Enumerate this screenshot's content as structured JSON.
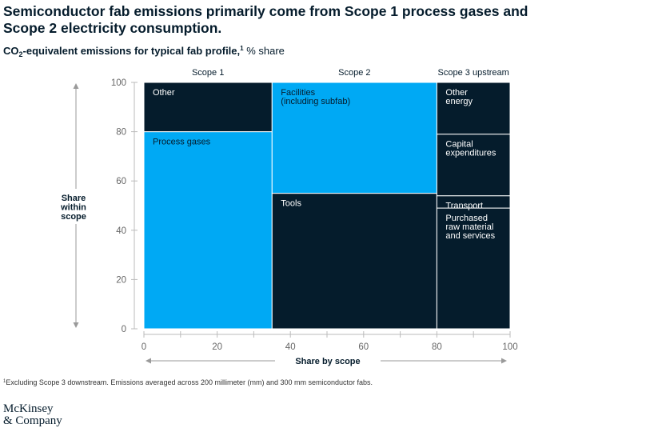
{
  "title_lines": [
    "Semiconductor fab emissions primarily come from Scope 1 process gases and",
    "Scope 2 electricity consumption."
  ],
  "subtitle": {
    "prefix": "CO",
    "subscript": "2",
    "middle": "-equivalent emissions for typical fab profile,",
    "superscript": "1",
    "suffix": " % share"
  },
  "footnote": {
    "marker": "1",
    "text": "Excluding Scope 3 downstream. Emissions averaged across 200 millimeter (mm) and 300 mm semiconductor fabs."
  },
  "logo": {
    "line1": "McKinsey",
    "line2": "& Company"
  },
  "colors": {
    "navy": "#051c2c",
    "blue": "#00a9f4",
    "axis": "#666666",
    "text": "#051c2c"
  },
  "chart_data": {
    "type": "marimekko",
    "xlabel": "Share by scope",
    "ylabel": [
      "Share",
      "within",
      "scope"
    ],
    "xlim": [
      0,
      100
    ],
    "ylim": [
      0,
      100
    ],
    "x_ticks": [
      0,
      20,
      40,
      60,
      80,
      100
    ],
    "y_ticks": [
      0,
      20,
      40,
      60,
      80,
      100
    ],
    "columns": [
      {
        "name": "Scope 1",
        "x_start": 0,
        "x_end": 35,
        "segments": [
          {
            "label": [
              "Process gases"
            ],
            "bottom": 0,
            "top": 80,
            "color": "#00a9f4"
          },
          {
            "label": [
              "Other"
            ],
            "bottom": 80,
            "top": 100,
            "color": "#051c2c"
          }
        ]
      },
      {
        "name": "Scope 2",
        "x_start": 35,
        "x_end": 80,
        "segments": [
          {
            "label": [
              "Tools"
            ],
            "bottom": 0,
            "top": 55,
            "color": "#051c2c"
          },
          {
            "label": [
              "Facilities",
              "(including subfab)"
            ],
            "bottom": 55,
            "top": 100,
            "color": "#00a9f4"
          }
        ]
      },
      {
        "name": "Scope 3 upstream",
        "x_start": 80,
        "x_end": 100,
        "segments": [
          {
            "label": [
              "Purchased",
              "raw material",
              "and services"
            ],
            "bottom": 0,
            "top": 49,
            "color": "#051c2c"
          },
          {
            "label": [
              "Transport"
            ],
            "bottom": 49,
            "top": 54,
            "color": "#051c2c"
          },
          {
            "label": [
              "Capital",
              "expenditures"
            ],
            "bottom": 54,
            "top": 79,
            "color": "#051c2c"
          },
          {
            "label": [
              "Other",
              "energy"
            ],
            "bottom": 79,
            "top": 100,
            "color": "#051c2c"
          }
        ]
      }
    ]
  }
}
